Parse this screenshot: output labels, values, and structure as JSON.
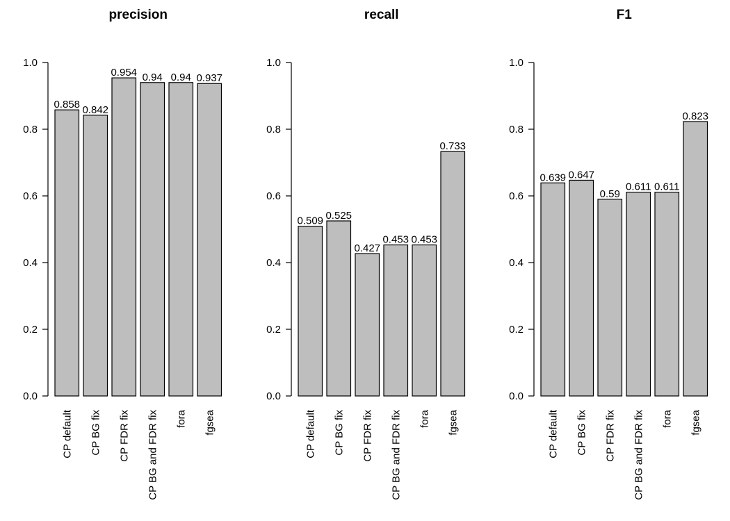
{
  "chart_data": [
    {
      "type": "bar",
      "title": "precision",
      "categories": [
        "CP default",
        "CP BG fix",
        "CP FDR fix",
        "CP BG and FDR fix",
        "fora",
        "fgsea"
      ],
      "values": [
        0.858,
        0.842,
        0.954,
        0.94,
        0.94,
        0.937
      ],
      "value_labels": [
        "0.858",
        "0.842",
        "0.954",
        "0.94",
        "0.94",
        "0.937"
      ],
      "ylim": [
        0,
        1
      ],
      "yticks": [
        "0.0",
        "0.2",
        "0.4",
        "0.6",
        "0.8",
        "1.0"
      ],
      "xlabel": "",
      "ylabel": "",
      "grid": false,
      "bar_color": "#bebebe"
    },
    {
      "type": "bar",
      "title": "recall",
      "categories": [
        "CP default",
        "CP BG fix",
        "CP FDR fix",
        "CP BG and FDR fix",
        "fora",
        "fgsea"
      ],
      "values": [
        0.509,
        0.525,
        0.427,
        0.453,
        0.453,
        0.733
      ],
      "value_labels": [
        "0.509",
        "0.525",
        "0.427",
        "0.453",
        "0.453",
        "0.733"
      ],
      "ylim": [
        0,
        1
      ],
      "yticks": [
        "0.0",
        "0.2",
        "0.4",
        "0.6",
        "0.8",
        "1.0"
      ],
      "xlabel": "",
      "ylabel": "",
      "grid": false,
      "bar_color": "#bebebe"
    },
    {
      "type": "bar",
      "title": "F1",
      "categories": [
        "CP default",
        "CP BG fix",
        "CP FDR fix",
        "CP BG and FDR fix",
        "fora",
        "fgsea"
      ],
      "values": [
        0.639,
        0.647,
        0.59,
        0.611,
        0.611,
        0.823
      ],
      "value_labels": [
        "0.639",
        "0.647",
        "0.59",
        "0.611",
        "0.611",
        "0.823"
      ],
      "ylim": [
        0,
        1
      ],
      "yticks": [
        "0.0",
        "0.2",
        "0.4",
        "0.6",
        "0.8",
        "1.0"
      ],
      "xlabel": "",
      "ylabel": "",
      "grid": false,
      "bar_color": "#bebebe"
    }
  ]
}
